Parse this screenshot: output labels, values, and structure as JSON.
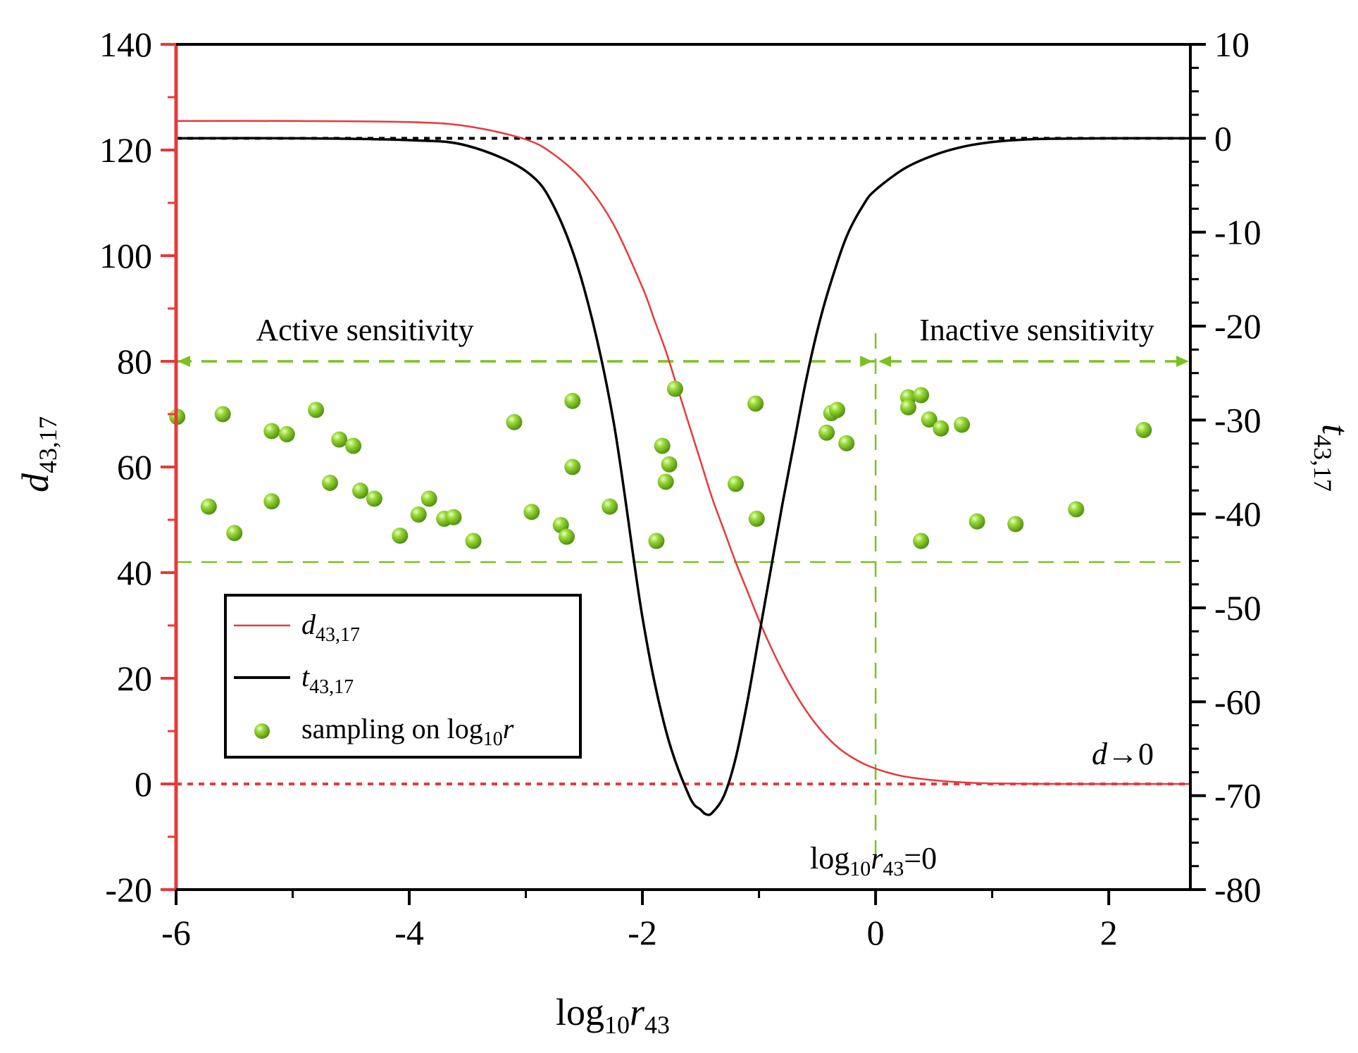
{
  "chart_data": {
    "type": "line",
    "x_axis": {
      "label_main": "log",
      "label_sub": "10",
      "label_var": "r",
      "label_var_sub": "43",
      "range": [
        -6,
        2.7
      ],
      "ticks": [
        -6,
        -4,
        -2,
        0,
        2
      ],
      "tick_labels": [
        "-6",
        "-4",
        "-2",
        "0",
        "2"
      ]
    },
    "y_left": {
      "label_var": "d",
      "label_sub": "43,17",
      "range": [
        -20,
        140
      ],
      "ticks": [
        -20,
        0,
        20,
        40,
        60,
        80,
        100,
        120,
        140
      ],
      "tick_labels": [
        "-20",
        "0",
        "20",
        "40",
        "60",
        "80",
        "100",
        "120",
        "140"
      ],
      "color": "#e8393b"
    },
    "y_right": {
      "label_var": "t",
      "label_sub": "43,17",
      "range": [
        -80,
        10
      ],
      "ticks": [
        -80,
        -70,
        -60,
        -50,
        -40,
        -30,
        -20,
        -10,
        0,
        10
      ],
      "tick_labels": [
        "-80",
        "-70",
        "-60",
        "-50",
        "-40",
        "-30",
        "-20",
        "-10",
        "0",
        "10"
      ]
    },
    "series": [
      {
        "name": "d43,17",
        "axis": "left",
        "color": "#e8393b",
        "x": [
          -6,
          -5,
          -4,
          -3.5,
          -3,
          -2.75,
          -2.5,
          -2.25,
          -2,
          -1.9,
          -1.8,
          -1.7,
          -1.6,
          -1.5,
          -1.4,
          -1.3,
          -1.2,
          -1.1,
          -1,
          -0.9,
          -0.8,
          -0.7,
          -0.6,
          -0.5,
          -0.4,
          -0.3,
          -0.2,
          -0.1,
          0,
          0.1,
          0.25,
          0.5,
          0.75,
          1,
          1.5,
          2,
          2.7
        ],
        "y": [
          125.5,
          125.5,
          125.3,
          124.5,
          122,
          119,
          114,
          106,
          94,
          88,
          82,
          75,
          68,
          61,
          54,
          48,
          42,
          36.5,
          31,
          26,
          21.5,
          17.5,
          14,
          11,
          8.5,
          6.5,
          5,
          3.8,
          2.9,
          2.2,
          1.4,
          0.7,
          0.3,
          0.1,
          0.02,
          0,
          0
        ]
      },
      {
        "name": "t43,17",
        "axis": "right",
        "color": "#000000",
        "x": [
          -6,
          -5,
          -4,
          -3.5,
          -3,
          -2.75,
          -2.5,
          -2.25,
          -2,
          -1.8,
          -1.6,
          -1.5,
          -1.45,
          -1.4,
          -1.3,
          -1.2,
          -1.1,
          -1,
          -0.9,
          -0.8,
          -0.7,
          -0.6,
          -0.5,
          -0.4,
          -0.25,
          -0.1,
          0,
          0.25,
          0.5,
          0.75,
          1,
          1.25,
          1.5,
          2,
          2.7
        ],
        "y": [
          0,
          0,
          -0.2,
          -0.8,
          -3.5,
          -7.5,
          -16,
          -30,
          -51,
          -63,
          -70,
          -71.5,
          -72,
          -71.8,
          -70,
          -66,
          -60,
          -53,
          -46,
          -39,
          -32.5,
          -26,
          -20.5,
          -16,
          -10.5,
          -7,
          -5.5,
          -3.2,
          -1.8,
          -0.9,
          -0.4,
          -0.15,
          -0.05,
          0,
          0
        ]
      },
      {
        "name": "sampling on log10r",
        "type": "scatter",
        "axis": "left",
        "color": "#7cc11f",
        "points": [
          [
            -5.99,
            69.5
          ],
          [
            -5.6,
            70
          ],
          [
            -5.72,
            52.5
          ],
          [
            -5.5,
            47.5
          ],
          [
            -5.18,
            66.8
          ],
          [
            -5.05,
            66.2
          ],
          [
            -5.18,
            53.5
          ],
          [
            -4.8,
            70.8
          ],
          [
            -4.68,
            57
          ],
          [
            -4.6,
            65.2
          ],
          [
            -4.48,
            64
          ],
          [
            -4.42,
            55.5
          ],
          [
            -4.3,
            54
          ],
          [
            -4.08,
            47
          ],
          [
            -3.92,
            51
          ],
          [
            -3.83,
            54
          ],
          [
            -3.7,
            50.2
          ],
          [
            -3.62,
            50.5
          ],
          [
            -3.45,
            46
          ],
          [
            -3.1,
            68.5
          ],
          [
            -2.95,
            51.5
          ],
          [
            -2.7,
            49
          ],
          [
            -2.65,
            46.8
          ],
          [
            -2.6,
            72.5
          ],
          [
            -2.6,
            60
          ],
          [
            -2.28,
            52.5
          ],
          [
            -1.88,
            46
          ],
          [
            -1.83,
            64
          ],
          [
            -1.8,
            57.2
          ],
          [
            -1.77,
            60.5
          ],
          [
            -1.72,
            74.8
          ],
          [
            -1.2,
            56.8
          ],
          [
            -1.03,
            72
          ],
          [
            -1.02,
            50.2
          ],
          [
            -0.42,
            66.5
          ],
          [
            -0.38,
            70.2
          ],
          [
            -0.33,
            70.8
          ],
          [
            -0.25,
            64.5
          ],
          [
            0.28,
            73.2
          ],
          [
            0.28,
            71.3
          ],
          [
            0.39,
            73.6
          ],
          [
            0.39,
            46
          ],
          [
            0.46,
            69
          ],
          [
            0.56,
            67.3
          ],
          [
            0.74,
            68
          ],
          [
            0.87,
            49.7
          ],
          [
            1.2,
            49.2
          ],
          [
            1.72,
            52
          ],
          [
            2.3,
            67
          ]
        ]
      }
    ],
    "reference_lines": [
      {
        "axis": "left",
        "y": 0,
        "color": "#e8393b",
        "style": "dotted"
      },
      {
        "axis": "right",
        "y": 0,
        "color": "#000000",
        "style": "dotted"
      },
      {
        "axis": "left",
        "y": 42,
        "color": "#7cc11f",
        "style": "dashed"
      },
      {
        "axis": "left",
        "y": 80,
        "color": "#7cc11f",
        "style": "dashed-arrows"
      },
      {
        "axis": "x",
        "x": 0,
        "color": "#7cc11f",
        "style": "dashed"
      }
    ],
    "annotations": {
      "active": "Active sensitivity",
      "inactive": "Inactive sensitivity",
      "d_limit_var": "d",
      "d_limit_rest": "→0",
      "x_zero_main": "log",
      "x_zero_sub": "10",
      "x_zero_var": "r",
      "x_zero_var_sub": "43",
      "x_zero_rest": "=0"
    },
    "legend": {
      "position": "bottom-left",
      "items": [
        {
          "var": "d",
          "sub": "43,17"
        },
        {
          "var": "t",
          "sub": "43,17"
        },
        {
          "text": "sampling on log",
          "sub": "10",
          "var": "r"
        }
      ]
    }
  }
}
